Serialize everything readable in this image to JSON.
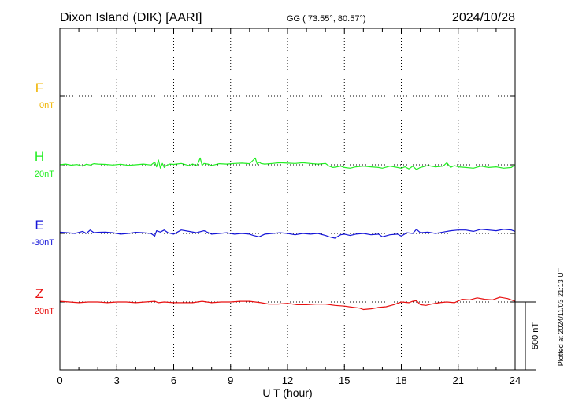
{
  "header": {
    "station": "Dixon Island (DIK)  [AARI]",
    "coords": "GG ( 73.55°,  80.57°)",
    "date": "2024/10/28"
  },
  "footer": {
    "plotted": "Plotted at 2024/11/03 21:13 UT"
  },
  "colors": {
    "F": "#f0b400",
    "H": "#22ee22",
    "E": "#1515d8",
    "Z": "#e81010"
  },
  "chart_data": {
    "type": "line",
    "xlabel": "U T (hour)",
    "xlim": [
      0,
      24
    ],
    "xticks": [
      "0",
      "3",
      "6",
      "9",
      "12",
      "15",
      "18",
      "21",
      "24"
    ],
    "scale_label": "500 nT",
    "scale_nT": 500,
    "series": [
      {
        "name": "F",
        "baseline_label": "0nT",
        "values": []
      },
      {
        "name": "H",
        "baseline_label": "20nT",
        "x": [
          0,
          0.3,
          0.6,
          0.9,
          1.2,
          1.4,
          1.6,
          1.8,
          2.0,
          2.4,
          2.8,
          3.2,
          3.6,
          4.0,
          4.4,
          4.8,
          5.0,
          5.1,
          5.2,
          5.3,
          5.4,
          5.5,
          5.6,
          5.8,
          6.0,
          6.4,
          6.8,
          7.0,
          7.2,
          7.3,
          7.4,
          7.5,
          7.6,
          7.8,
          8.0,
          8.4,
          8.8,
          9.2,
          9.6,
          10.0,
          10.2,
          10.3,
          10.4,
          10.5,
          10.6,
          10.8,
          11.2,
          11.6,
          12.0,
          12.4,
          12.8,
          13.2,
          13.6,
          14.0,
          14.2,
          14.4,
          14.6,
          14.8,
          15.0,
          15.3,
          15.6,
          16.0,
          16.4,
          16.8,
          17.0,
          17.4,
          17.8,
          18.0,
          18.2,
          18.4,
          18.6,
          18.8,
          19.0,
          19.4,
          19.8,
          20.2,
          20.4,
          20.6,
          20.8,
          21.0,
          21.4,
          21.8,
          22.2,
          22.6,
          23.0,
          23.4,
          23.8,
          24.0
        ],
        "values": [
          0,
          5,
          -3,
          2,
          -10,
          4,
          -2,
          8,
          5,
          3,
          -2,
          4,
          -4,
          0,
          5,
          -2,
          20,
          -15,
          35,
          -25,
          10,
          -20,
          -5,
          5,
          3,
          10,
          -5,
          5,
          -8,
          15,
          50,
          -5,
          10,
          5,
          -5,
          8,
          5,
          10,
          12,
          8,
          35,
          50,
          5,
          20,
          10,
          5,
          10,
          15,
          12,
          10,
          15,
          10,
          5,
          10,
          -10,
          -20,
          -15,
          -10,
          -20,
          -25,
          -15,
          -10,
          -15,
          -20,
          -25,
          -10,
          -20,
          -25,
          -15,
          -30,
          -10,
          -35,
          -20,
          -5,
          -15,
          -10,
          15,
          -20,
          -5,
          -15,
          -20,
          -25,
          -10,
          -20,
          -15,
          -25,
          -20,
          0
        ]
      },
      {
        "name": "E",
        "baseline_label": "-30nT",
        "x": [
          0,
          0.4,
          0.8,
          1.2,
          1.4,
          1.6,
          1.8,
          2.0,
          2.4,
          2.8,
          3.2,
          3.6,
          4.0,
          4.4,
          4.8,
          5.0,
          5.1,
          5.3,
          5.5,
          5.7,
          6.0,
          6.2,
          6.4,
          6.8,
          7.2,
          7.6,
          8.0,
          8.4,
          8.8,
          9.2,
          9.6,
          10.0,
          10.2,
          10.5,
          10.8,
          11.2,
          11.6,
          12.0,
          12.4,
          12.8,
          13.2,
          13.6,
          14.0,
          14.2,
          14.5,
          14.8,
          15.0,
          15.3,
          15.6,
          16.0,
          16.4,
          16.8,
          17.0,
          17.4,
          17.8,
          18.0,
          18.3,
          18.6,
          18.8,
          19.0,
          19.4,
          19.8,
          20.2,
          20.6,
          21.0,
          21.4,
          21.8,
          22.2,
          22.6,
          23.0,
          23.4,
          23.8,
          24.0
        ],
        "values": [
          10,
          5,
          0,
          15,
          0,
          25,
          5,
          8,
          10,
          5,
          -5,
          0,
          8,
          5,
          0,
          -20,
          20,
          10,
          25,
          5,
          -5,
          10,
          25,
          15,
          5,
          20,
          -5,
          0,
          5,
          -5,
          0,
          -5,
          -15,
          -25,
          -5,
          0,
          5,
          0,
          -10,
          0,
          -5,
          0,
          -15,
          -25,
          -35,
          -10,
          -5,
          -15,
          -5,
          0,
          -10,
          -5,
          -25,
          -10,
          -5,
          -20,
          5,
          0,
          30,
          5,
          10,
          0,
          10,
          20,
          25,
          25,
          15,
          30,
          25,
          20,
          30,
          25,
          15
        ]
      },
      {
        "name": "Z",
        "baseline_label": "20nT",
        "x": [
          0,
          0.5,
          1.0,
          1.5,
          2.0,
          2.5,
          3.0,
          3.5,
          4.0,
          4.5,
          5.0,
          5.2,
          5.5,
          6.0,
          6.5,
          7.0,
          7.5,
          8.0,
          8.5,
          9.0,
          9.5,
          10.0,
          10.3,
          10.6,
          11.0,
          11.5,
          12.0,
          12.5,
          13.0,
          13.5,
          14.0,
          14.5,
          15.0,
          15.5,
          15.8,
          16.0,
          16.4,
          16.8,
          17.2,
          17.6,
          18.0,
          18.4,
          18.6,
          18.8,
          19.0,
          19.3,
          19.6,
          20.0,
          20.4,
          20.8,
          21.2,
          21.6,
          22.0,
          22.4,
          22.8,
          23.2,
          23.6,
          24.0
        ],
        "values": [
          5,
          0,
          -5,
          0,
          0,
          -5,
          0,
          0,
          -5,
          0,
          5,
          -5,
          0,
          -5,
          -5,
          -5,
          5,
          -5,
          0,
          0,
          5,
          5,
          0,
          -5,
          -15,
          -15,
          -10,
          -20,
          -20,
          -15,
          -15,
          -25,
          -30,
          -40,
          -45,
          -55,
          -50,
          -40,
          -35,
          -20,
          0,
          -5,
          5,
          10,
          -20,
          -25,
          -15,
          -5,
          0,
          -5,
          20,
          15,
          30,
          20,
          15,
          35,
          25,
          5
        ]
      }
    ]
  }
}
